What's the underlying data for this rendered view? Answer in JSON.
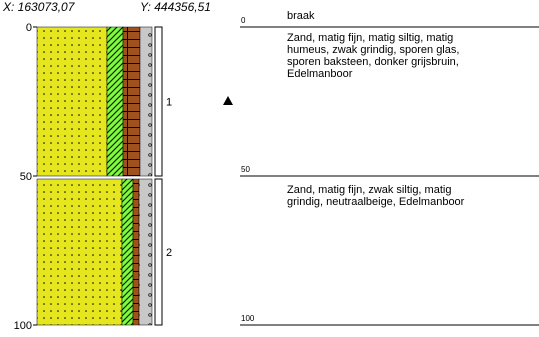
{
  "header": {
    "x": "X: 163073,07",
    "y": "Y: 444356,51"
  },
  "surface_label": "braak",
  "depth_ticks": [
    0,
    50,
    100
  ],
  "layers": [
    {
      "number": "1",
      "top": 0,
      "bottom": 50,
      "description": [
        "Zand, matig fijn, matig siltig, matig",
        "humeus, zwak grindig, sporen glas,",
        "sporen baksteen, donker grijsbruin,",
        "Edelmanboor"
      ]
    },
    {
      "number": "2",
      "top": 50,
      "bottom": 100,
      "description": [
        "Zand, matig fijn, zwak siltig, matig",
        "grindig, neutraalbeige, Edelmanboor"
      ]
    }
  ]
}
